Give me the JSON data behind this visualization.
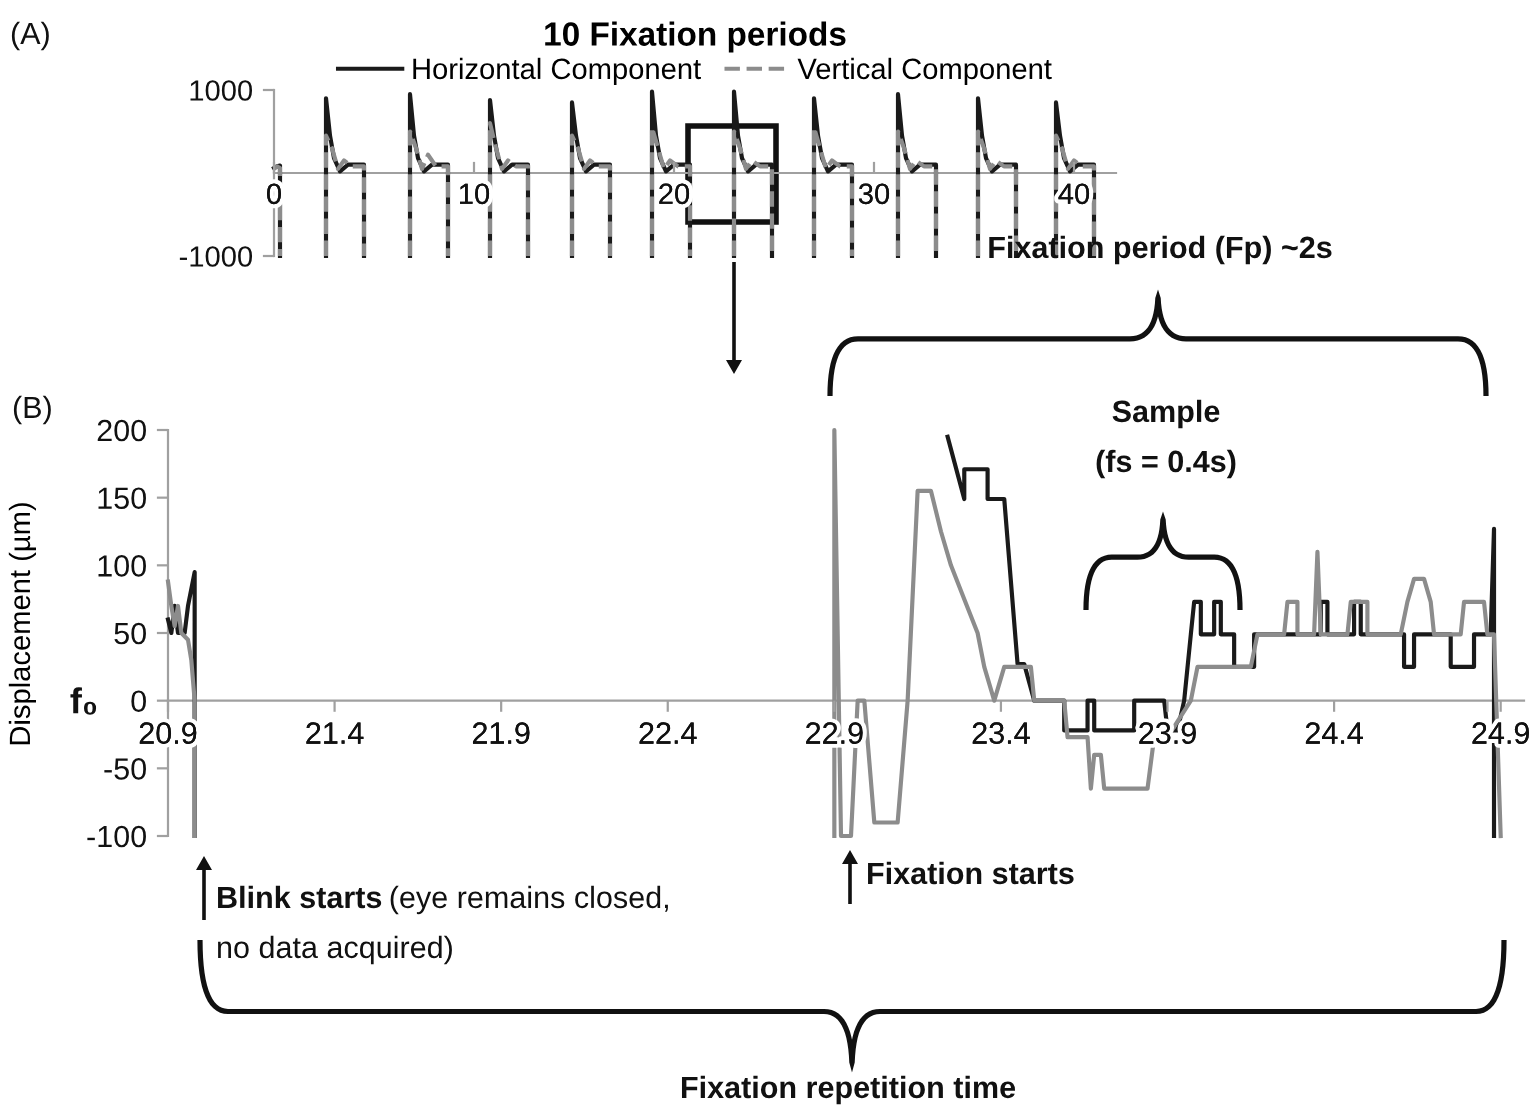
{
  "chart_data": [
    {
      "type": "line",
      "title": "10 Fixation periods",
      "annotations": [
        "(A)"
      ],
      "legend": "top",
      "xlim": [
        0,
        42.1
      ],
      "xticks": [
        0,
        10,
        20,
        30,
        40
      ],
      "ylim": [
        -1000,
        1000
      ],
      "yticks": [
        -1000,
        1000
      ],
      "series": [
        {
          "name": "Horizontal Component",
          "color": "#1a1a1a",
          "line_style": "solid",
          "x": [
            0,
            0.15,
            0.3,
            0.3,
            null,
            2.6,
            2.6,
            2.8,
            3.0,
            3.3,
            3.7,
            4.5,
            4.5,
            null,
            6.8,
            6.8,
            7.0,
            7.2,
            7.5,
            7.9,
            8.7,
            8.7,
            null,
            10.8,
            10.8,
            11.0,
            11.2,
            11.5,
            11.9,
            12.7,
            12.7,
            null,
            14.9,
            14.9,
            15.1,
            15.3,
            15.6,
            16.0,
            16.8,
            16.8,
            null,
            18.9,
            18.9,
            19.1,
            19.3,
            19.6,
            20.0,
            20.8,
            20.8,
            null,
            23.0,
            23.0,
            23.2,
            23.4,
            23.7,
            24.1,
            24.9,
            24.9,
            null,
            27.0,
            27.0,
            27.2,
            27.4,
            27.7,
            28.1,
            28.9,
            28.9,
            null,
            31.2,
            31.2,
            31.4,
            31.6,
            31.9,
            32.3,
            33.1,
            33.1,
            null,
            35.2,
            35.2,
            35.4,
            35.6,
            35.9,
            36.3,
            37.1,
            37.1,
            null,
            39.1,
            39.1,
            39.3,
            39.5,
            39.8,
            40.2,
            41.0,
            41.0
          ],
          "values": [
            60,
            80,
            90,
            -1000,
            null,
            -1000,
            900,
            450,
            180,
            20,
            100,
            100,
            -1000,
            null,
            -1000,
            950,
            450,
            180,
            20,
            100,
            100,
            -1000,
            null,
            -1000,
            880,
            450,
            180,
            20,
            100,
            100,
            -1000,
            null,
            -1000,
            850,
            450,
            180,
            20,
            100,
            100,
            -1000,
            null,
            -1000,
            980,
            450,
            180,
            20,
            100,
            100,
            -1000,
            null,
            -1000,
            980,
            450,
            180,
            20,
            100,
            100,
            -1000,
            null,
            -1000,
            900,
            450,
            180,
            20,
            100,
            100,
            -1000,
            null,
            -1000,
            950,
            450,
            180,
            20,
            100,
            100,
            -1000,
            null,
            -1000,
            900,
            450,
            180,
            20,
            100,
            100,
            -1000,
            null,
            -1000,
            850,
            450,
            180,
            20,
            100,
            100,
            -1000
          ]
        },
        {
          "name": "Vertical Component",
          "color": "#8c8c8c",
          "line_style": "dashed",
          "x": [
            0,
            0.15,
            0.3,
            0.3,
            null,
            2.6,
            2.6,
            2.9,
            3.2,
            3.5,
            3.9,
            4.5,
            4.5,
            null,
            6.8,
            6.8,
            7.1,
            7.4,
            7.7,
            8.1,
            8.7,
            8.7,
            null,
            10.8,
            10.8,
            11.1,
            11.4,
            11.7,
            12.1,
            12.7,
            12.7,
            null,
            14.9,
            14.9,
            15.2,
            15.5,
            15.8,
            16.2,
            16.8,
            16.8,
            null,
            18.9,
            18.9,
            19.2,
            19.5,
            19.8,
            20.2,
            20.8,
            20.8,
            null,
            23.0,
            23.0,
            23.3,
            23.6,
            23.9,
            24.3,
            24.9,
            24.9,
            null,
            27.0,
            27.0,
            27.3,
            27.6,
            27.9,
            28.3,
            28.9,
            28.9,
            null,
            31.2,
            31.2,
            31.5,
            31.8,
            32.1,
            32.5,
            33.1,
            33.1,
            null,
            35.2,
            35.2,
            35.5,
            35.8,
            36.1,
            36.5,
            37.1,
            37.1,
            null,
            39.1,
            39.1,
            39.4,
            39.7,
            40.0,
            40.4,
            41.0,
            41.0
          ],
          "values": [
            50,
            80,
            60,
            -1000,
            null,
            -1000,
            450,
            300,
            50,
            150,
            80,
            80,
            -1000,
            null,
            -1000,
            500,
            300,
            50,
            220,
            80,
            80,
            -1000,
            null,
            -1000,
            600,
            300,
            50,
            150,
            80,
            80,
            -1000,
            null,
            -1000,
            450,
            300,
            50,
            150,
            80,
            80,
            -1000,
            null,
            -1000,
            550,
            300,
            50,
            150,
            80,
            80,
            -1000,
            null,
            -1000,
            500,
            300,
            50,
            150,
            80,
            80,
            -1000,
            null,
            -1000,
            550,
            300,
            50,
            150,
            80,
            80,
            -1000,
            null,
            -1000,
            500,
            300,
            50,
            150,
            80,
            80,
            -1000,
            null,
            -1000,
            500,
            300,
            50,
            150,
            80,
            80,
            -1000,
            null,
            -1000,
            450,
            300,
            50,
            150,
            80,
            80,
            -1000
          ]
        }
      ]
    },
    {
      "type": "line",
      "ylabel": "Displacement (µm)",
      "annotations": [
        "(B)",
        "f₀",
        "Fixation period (Fp) ~2s",
        "Sample",
        "(fs = 0.4s)",
        "Blink starts",
        "(eye remains closed,",
        "no data acquired)",
        "Fixation starts",
        "Fixation repetition time"
      ],
      "xlim": [
        20.9,
        24.97
      ],
      "xticks": [
        20.9,
        21.4,
        21.9,
        22.4,
        22.9,
        23.4,
        23.9,
        24.4,
        24.9
      ],
      "ylim": [
        -100,
        200
      ],
      "yticks": [
        -100,
        -50,
        0,
        50,
        100,
        150,
        200
      ],
      "series": [
        {
          "color": "#1a1a1a",
          "x": [
            20.9,
            20.91,
            20.92,
            20.93,
            20.95,
            20.96,
            20.98,
            20.98,
            null,
            23.24,
            23.29,
            23.29,
            23.36,
            23.36,
            23.41,
            23.45,
            23.47,
            23.5,
            23.59,
            23.59,
            23.66,
            23.66,
            23.68,
            23.68,
            23.8,
            23.8,
            23.89,
            23.9,
            23.93,
            23.95,
            23.97,
            23.98,
            24.0,
            24.0,
            24.04,
            24.04,
            24.06,
            24.06,
            24.1,
            24.1,
            24.16,
            24.16,
            24.36,
            24.36,
            24.38,
            24.38,
            24.46,
            24.46,
            24.48,
            24.48,
            24.61,
            24.61,
            24.64,
            24.64,
            24.75,
            24.75,
            24.82,
            24.82,
            24.87,
            24.88,
            24.88
          ],
          "values": [
            60,
            50,
            70,
            50,
            50,
            70,
            95,
            -100,
            null,
            195,
            149,
            171,
            171,
            149,
            149,
            27,
            27,
            0,
            0,
            -22,
            -22,
            0,
            0,
            -22,
            -22,
            0,
            0,
            -22,
            -22,
            0,
            49,
            73,
            73,
            49,
            49,
            73,
            73,
            49,
            49,
            25,
            25,
            49,
            49,
            73,
            73,
            49,
            49,
            73,
            73,
            49,
            49,
            25,
            25,
            49,
            49,
            25,
            25,
            49,
            49,
            127,
            -100
          ]
        },
        {
          "color": "#8c8c8c",
          "x": [
            20.9,
            20.91,
            20.92,
            20.93,
            20.94,
            20.96,
            20.97,
            20.98,
            20.98,
            null,
            22.9,
            22.9,
            22.92,
            22.95,
            22.97,
            22.99,
            23.02,
            23.09,
            23.12,
            23.15,
            23.19,
            23.22,
            23.25,
            23.29,
            23.33,
            23.35,
            23.38,
            23.41,
            23.49,
            23.5,
            23.59,
            23.6,
            23.66,
            23.67,
            23.68,
            23.7,
            23.71,
            23.84,
            23.86,
            23.9,
            23.97,
            23.99,
            24.15,
            24.17,
            24.25,
            24.26,
            24.29,
            24.29,
            24.34,
            24.35,
            24.36,
            24.44,
            24.45,
            24.5,
            24.5,
            24.6,
            24.62,
            24.64,
            24.67,
            24.69,
            24.7,
            24.78,
            24.79,
            24.85,
            24.86,
            24.88,
            24.9
          ],
          "values": [
            88,
            70,
            55,
            70,
            50,
            45,
            30,
            0,
            -100,
            null,
            -100,
            200,
            -100,
            -100,
            0,
            0,
            -90,
            -90,
            0,
            155,
            155,
            125,
            100,
            75,
            50,
            25,
            0,
            25,
            25,
            0,
            0,
            -27,
            -27,
            -65,
            -40,
            -40,
            -65,
            -65,
            -27,
            -27,
            0,
            25,
            25,
            49,
            49,
            73,
            73,
            49,
            49,
            110,
            49,
            49,
            73,
            73,
            49,
            49,
            73,
            90,
            90,
            73,
            49,
            49,
            73,
            73,
            49,
            49,
            -100
          ]
        }
      ]
    }
  ]
}
